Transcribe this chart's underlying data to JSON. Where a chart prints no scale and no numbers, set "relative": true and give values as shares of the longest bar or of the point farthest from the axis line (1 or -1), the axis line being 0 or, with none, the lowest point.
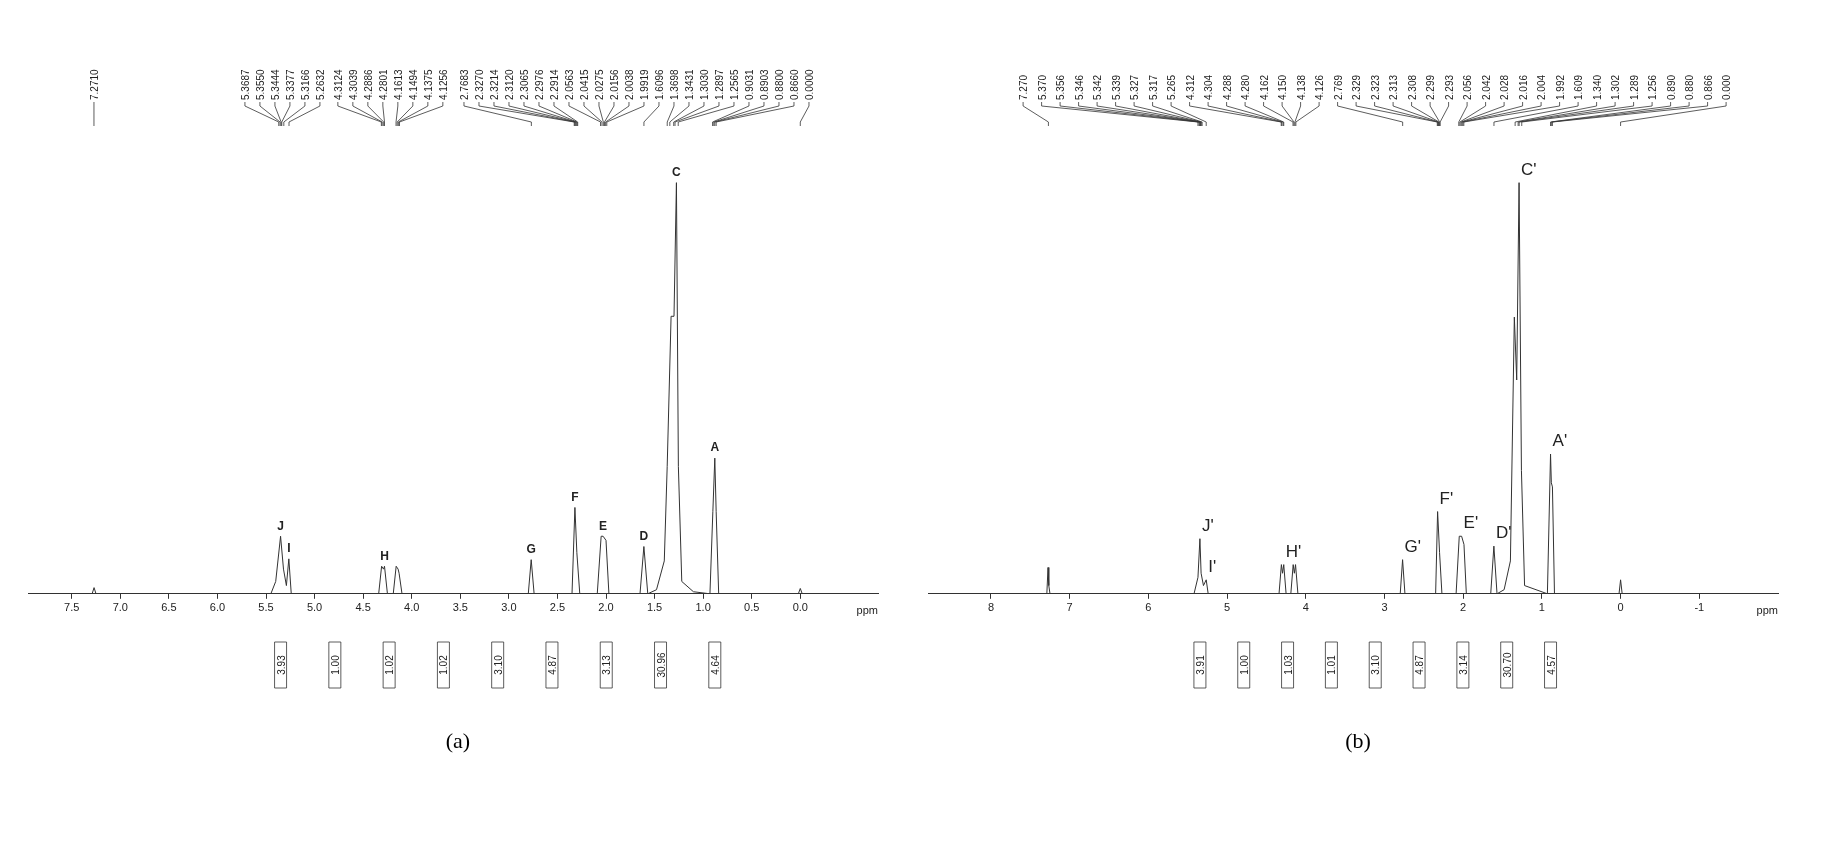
{
  "chart_data": [
    {
      "type": "line",
      "relative": true,
      "xlabel": "ppm",
      "xlim": [
        7.95,
        -0.8
      ],
      "xticks": [
        7.5,
        {
          "value": 7,
          "label": "7.0"
        },
        6.5,
        {
          "value": 6,
          "label": "6.0"
        },
        5.5,
        {
          "value": 5,
          "label": "5.0"
        },
        4.5,
        {
          "value": 4,
          "label": "4.0"
        },
        3.5,
        {
          "value": 3,
          "label": "3.0"
        },
        2.5,
        {
          "value": 2,
          "label": "2.0"
        },
        1.5,
        {
          "value": 1,
          "label": "1.0"
        },
        0.5,
        {
          "value": 0,
          "label": "0.0"
        }
      ],
      "series": [
        {
          "color": "#333333",
          "x": [
            7.95,
            7.29,
            7.27,
            7.25,
            5.45,
            5.4,
            5.35,
            5.32,
            5.29,
            5.265,
            5.24,
            4.34,
            4.31,
            4.29,
            4.28,
            4.25,
            4.19,
            4.16,
            4.14,
            4.13,
            4.1,
            2.8,
            2.77,
            2.74,
            2.35,
            2.32,
            2.3,
            2.27,
            2.09,
            2.05,
            2.03,
            2.0,
            1.97,
            1.65,
            1.61,
            1.57,
            1.48,
            1.4,
            1.37,
            1.33,
            1.3,
            1.275,
            1.255,
            1.22,
            1.1,
            0.93,
            0.9,
            0.88,
            0.866,
            0.84,
            0.02,
            0.0,
            -0.02,
            -0.8
          ],
          "values": [
            0,
            0,
            0.015,
            0,
            0,
            0.03,
            0.14,
            0.06,
            0.02,
            0.085,
            0,
            0,
            0.067,
            0.06,
            0.067,
            0,
            0,
            0.067,
            0.06,
            0.05,
            0,
            0,
            0.083,
            0,
            0,
            0.21,
            0.1,
            0,
            0,
            0.14,
            0.14,
            0.13,
            0,
            0,
            0.115,
            0,
            0.01,
            0.08,
            0.31,
            0.675,
            0.675,
            1,
            0.31,
            0.03,
            0.005,
            0,
            0.2,
            0.33,
            0.2,
            0,
            0,
            0.013,
            0,
            0
          ]
        }
      ],
      "annotations": [
        {
          "text": "J",
          "x": 5.35,
          "y": 0.14
        },
        {
          "text": "I",
          "x": 5.265,
          "y": 0.085
        },
        {
          "text": "H",
          "x": 4.28,
          "y": 0.067
        },
        {
          "text": "G",
          "x": 2.77,
          "y": 0.083
        },
        {
          "text": "F",
          "x": 2.32,
          "y": 0.21
        },
        {
          "text": "E",
          "x": 2.03,
          "y": 0.14
        },
        {
          "text": "D",
          "x": 1.61,
          "y": 0.115
        },
        {
          "text": "C",
          "x": 1.275,
          "y": 1
        },
        {
          "text": "A",
          "x": 0.88,
          "y": 0.33
        },
        {
          "text": "7.2710",
          "x": 7.271
        },
        {
          "text": "5.3687",
          "x": 5.3687
        },
        {
          "text": "5.3550",
          "x": 5.355
        },
        {
          "text": "5.3444",
          "x": 5.3444
        },
        {
          "text": "5.3377",
          "x": 5.3377
        },
        {
          "text": "5.3166",
          "x": 5.3166
        },
        {
          "text": "5.2632",
          "x": 5.2632
        },
        {
          "text": "4.3124",
          "x": 4.3124
        },
        {
          "text": "4.3039",
          "x": 4.3039
        },
        {
          "text": "4.2886",
          "x": 4.2886
        },
        {
          "text": "4.2801",
          "x": 4.2801
        },
        {
          "text": "4.1613",
          "x": 4.1613
        },
        {
          "text": "4.1494",
          "x": 4.1494
        },
        {
          "text": "4.1375",
          "x": 4.1375
        },
        {
          "text": "4.1256",
          "x": 4.1256
        },
        {
          "text": "2.7683",
          "x": 2.7683
        },
        {
          "text": "2.3270",
          "x": 2.327
        },
        {
          "text": "2.3214",
          "x": 2.3214
        },
        {
          "text": "2.3120",
          "x": 2.312
        },
        {
          "text": "2.3065",
          "x": 2.3065
        },
        {
          "text": "2.2976",
          "x": 2.2976
        },
        {
          "text": "2.2914",
          "x": 2.2914
        },
        {
          "text": "2.0563",
          "x": 2.0563
        },
        {
          "text": "2.0415",
          "x": 2.0415
        },
        {
          "text": "2.0275",
          "x": 2.0275
        },
        {
          "text": "2.0156",
          "x": 2.0156
        },
        {
          "text": "2.0038",
          "x": 2.0038
        },
        {
          "text": "1.9919",
          "x": 1.9919
        },
        {
          "text": "1.6096",
          "x": 1.6096
        },
        {
          "text": "1.3698",
          "x": 1.3698
        },
        {
          "text": "1.3431",
          "x": 1.3431
        },
        {
          "text": "1.3030",
          "x": 1.303
        },
        {
          "text": "1.2897",
          "x": 1.2897
        },
        {
          "text": "1.2565",
          "x": 1.2565
        },
        {
          "text": "0.9031",
          "x": 0.9031
        },
        {
          "text": "0.8903",
          "x": 0.8903
        },
        {
          "text": "0.8800",
          "x": 0.88
        },
        {
          "text": "0.8660",
          "x": 0.866
        },
        {
          "text": "0.0000",
          "x": 0
        },
        "3.93",
        "1.00",
        "1.02",
        "1.02",
        "3.10",
        "4.87",
        "3.13",
        "30.96",
        "4.64",
        "(a)"
      ]
    },
    {
      "type": "line",
      "relative": true,
      "xlabel": "ppm",
      "xlim": [
        8.8,
        -2.0
      ],
      "xticks": [
        8,
        7,
        6,
        5,
        4,
        3,
        2,
        1,
        0,
        -1
      ],
      "series": [
        {
          "color": "#333333",
          "x": [
            8.8,
            7.29,
            7.275,
            7.265,
            7.25,
            5.42,
            5.37,
            5.345,
            5.33,
            5.3,
            5.265,
            5.24,
            4.34,
            4.31,
            4.295,
            4.28,
            4.25,
            4.19,
            4.16,
            4.145,
            4.13,
            4.1,
            2.8,
            2.77,
            2.74,
            2.35,
            2.325,
            2.3,
            2.27,
            2.09,
            2.05,
            2.02,
            1.99,
            1.96,
            1.65,
            1.61,
            1.57,
            1.48,
            1.4,
            1.35,
            1.32,
            1.29,
            1.26,
            1.22,
            0.93,
            0.89,
            0.88,
            0.866,
            0.84,
            0.02,
            0.0,
            -0.02,
            -2.0
          ],
          "values": [
            0,
            0,
            0.064,
            0.02,
            0,
            0,
            0.04,
            0.134,
            0.05,
            0.02,
            0.034,
            0,
            0,
            0.071,
            0.05,
            0.071,
            0,
            0,
            0.071,
            0.05,
            0.071,
            0,
            0,
            0.083,
            0,
            0,
            0.2,
            0.1,
            0,
            0,
            0.14,
            0.14,
            0.12,
            0,
            0,
            0.116,
            0,
            0.01,
            0.08,
            0.673,
            0.52,
            1,
            0.3,
            0.02,
            0,
            0.34,
            0.27,
            0.26,
            0,
            0,
            0.034,
            0,
            0
          ]
        }
      ],
      "annotations": [
        {
          "text": "J'",
          "x": 5.345,
          "y": 0.134
        },
        {
          "text": "I'",
          "x": 5.265,
          "y": 0.034
        },
        {
          "text": "H'",
          "x": 4.28,
          "y": 0.071
        },
        {
          "text": "G'",
          "x": 2.77,
          "y": 0.083
        },
        {
          "text": "F'",
          "x": 2.325,
          "y": 0.2
        },
        {
          "text": "E'",
          "x": 2.02,
          "y": 0.14
        },
        {
          "text": "D'",
          "x": 1.61,
          "y": 0.116
        },
        {
          "text": "C'",
          "x": 1.29,
          "y": 1
        },
        {
          "text": "A'",
          "x": 0.89,
          "y": 0.34
        },
        {
          "text": "7.270",
          "x": 7.27
        },
        {
          "text": "5.370",
          "x": 5.37
        },
        {
          "text": "5.356",
          "x": 5.356
        },
        {
          "text": "5.346",
          "x": 5.346
        },
        {
          "text": "5.342",
          "x": 5.342
        },
        {
          "text": "5.339",
          "x": 5.339
        },
        {
          "text": "5.327",
          "x": 5.327
        },
        {
          "text": "5.317",
          "x": 5.317
        },
        {
          "text": "5.265",
          "x": 5.265
        },
        {
          "text": "4.312",
          "x": 4.312
        },
        {
          "text": "4.304",
          "x": 4.304
        },
        {
          "text": "4.288",
          "x": 4.288
        },
        {
          "text": "4.280",
          "x": 4.28
        },
        {
          "text": "4.162",
          "x": 4.162
        },
        {
          "text": "4.150",
          "x": 4.15
        },
        {
          "text": "4.138",
          "x": 4.138
        },
        {
          "text": "4.126",
          "x": 4.126
        },
        {
          "text": "2.769",
          "x": 2.769
        },
        {
          "text": "2.329",
          "x": 2.329
        },
        {
          "text": "2.323",
          "x": 2.323
        },
        {
          "text": "2.313",
          "x": 2.313
        },
        {
          "text": "2.308",
          "x": 2.308
        },
        {
          "text": "2.299",
          "x": 2.299
        },
        {
          "text": "2.293",
          "x": 2.293
        },
        {
          "text": "2.056",
          "x": 2.056
        },
        {
          "text": "2.042",
          "x": 2.042
        },
        {
          "text": "2.028",
          "x": 2.028
        },
        {
          "text": "2.016",
          "x": 2.016
        },
        {
          "text": "2.004",
          "x": 2.004
        },
        {
          "text": "1.992",
          "x": 1.992
        },
        {
          "text": "1.609",
          "x": 1.609
        },
        {
          "text": "1.340",
          "x": 1.34
        },
        {
          "text": "1.302",
          "x": 1.302
        },
        {
          "text": "1.289",
          "x": 1.289
        },
        {
          "text": "1.256",
          "x": 1.256
        },
        {
          "text": "0.890",
          "x": 0.89
        },
        {
          "text": "0.880",
          "x": 0.88
        },
        {
          "text": "0.866",
          "x": 0.866
        },
        {
          "text": "0.000",
          "x": 0
        },
        "3.91",
        "1.00",
        "1.03",
        "1.01",
        "3.10",
        "4.87",
        "3.14",
        "30.70",
        "4.57",
        "(b)"
      ]
    }
  ]
}
